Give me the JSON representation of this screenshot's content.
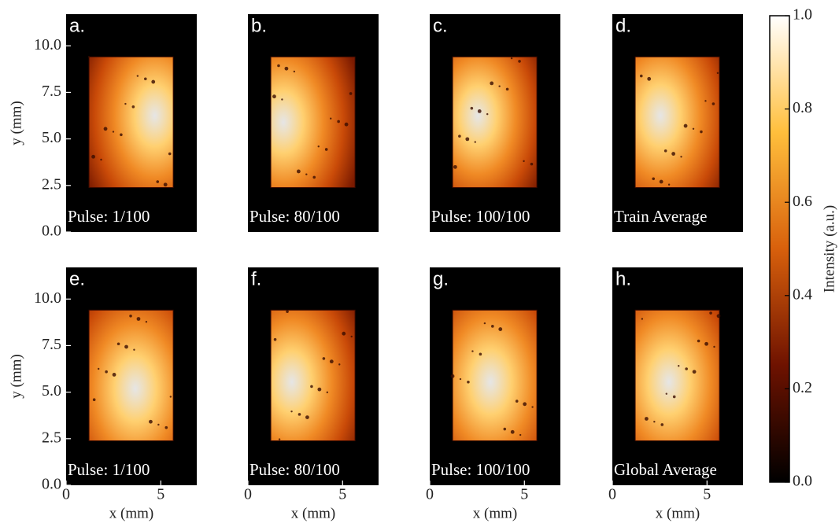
{
  "chart_data": {
    "type": "heatmap",
    "xlabel": "x (mm)",
    "ylabel": "y (mm)",
    "xlim": [
      0,
      6.9
    ],
    "ylim": [
      0,
      11.7
    ],
    "xticks": [
      0,
      5
    ],
    "yticks": [
      {
        "value": 0,
        "label": "0.0"
      },
      2.5,
      {
        "value": 5,
        "label": "5.0"
      },
      7.5,
      {
        "value": 10,
        "label": "10.0"
      }
    ],
    "panels": [
      {
        "label": "a.",
        "annotation": "Pulse: 1/100"
      },
      {
        "label": "b.",
        "annotation": "Pulse: 80/100"
      },
      {
        "label": "c.",
        "annotation": "Pulse: 100/100"
      },
      {
        "label": "d.",
        "annotation": "Train Average"
      },
      {
        "label": "e.",
        "annotation": "Pulse: 1/100"
      },
      {
        "label": "f.",
        "annotation": "Pulse: 80/100"
      },
      {
        "label": "g.",
        "annotation": "Pulse: 100/100"
      },
      {
        "label": "h.",
        "annotation": "Global Average"
      }
    ],
    "colorbar": {
      "label": "Intensity (a.u.)",
      "lim": [
        0,
        1
      ],
      "ticks": [
        {
          "value": 0,
          "label": "0.0"
        },
        0.2,
        0.4,
        0.6,
        0.8,
        {
          "value": 1,
          "label": "1.0"
        }
      ],
      "colors": [
        "#000000",
        "#6e1200",
        "#d8600c",
        "#ffbf3c",
        "#ffffff"
      ]
    }
  }
}
